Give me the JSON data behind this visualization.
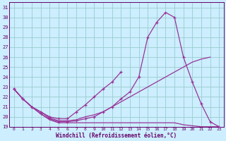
{
  "xlabel": "Windchill (Refroidissement éolien,°C)",
  "bg_color": "#cceeff",
  "grid_color": "#99cccc",
  "line_color": "#993399",
  "x": [
    0,
    1,
    2,
    3,
    4,
    5,
    6,
    7,
    8,
    9,
    10,
    11,
    12,
    13,
    14,
    15,
    16,
    17,
    18,
    19,
    20,
    21,
    22,
    23
  ],
  "s1": [
    22.8,
    21.8,
    21.0,
    20.5,
    19.9,
    19.6,
    19.6,
    19.7,
    20.0,
    20.2,
    20.5,
    21.0,
    21.5,
    22.0,
    22.5,
    23.0,
    23.5,
    24.0,
    24.5,
    25.0,
    25.5,
    25.8,
    26.0,
    null
  ],
  "s2": [
    22.8,
    21.8,
    21.0,
    20.3,
    19.7,
    19.4,
    19.4,
    19.4,
    19.4,
    19.4,
    19.4,
    19.4,
    19.4,
    19.4,
    19.4,
    19.4,
    19.4,
    19.4,
    19.4,
    19.2,
    19.1,
    19.0,
    19.0,
    19.0
  ],
  "s3": [
    22.8,
    21.8,
    21.0,
    20.3,
    19.8,
    19.5,
    19.5,
    19.6,
    19.8,
    20.0,
    20.5,
    21.0,
    21.8,
    22.5,
    24.0,
    28.0,
    29.5,
    30.5,
    30.0,
    26.0,
    23.5,
    21.3,
    19.5,
    19.0
  ],
  "s4": [
    22.8,
    21.8,
    21.0,
    20.5,
    20.0,
    19.8,
    19.8,
    20.5,
    21.2,
    22.0,
    22.8,
    23.5,
    24.5,
    null,
    null,
    null,
    null,
    null,
    null,
    null,
    null,
    null,
    null,
    null
  ],
  "xlim": [
    -0.5,
    23.5
  ],
  "ylim": [
    19.0,
    31.5
  ],
  "yticks": [
    19,
    20,
    21,
    22,
    23,
    24,
    25,
    26,
    27,
    28,
    29,
    30,
    31
  ],
  "xticks": [
    0,
    1,
    2,
    3,
    4,
    5,
    6,
    7,
    8,
    9,
    10,
    11,
    12,
    13,
    14,
    15,
    16,
    17,
    18,
    19,
    20,
    21,
    22,
    23
  ]
}
